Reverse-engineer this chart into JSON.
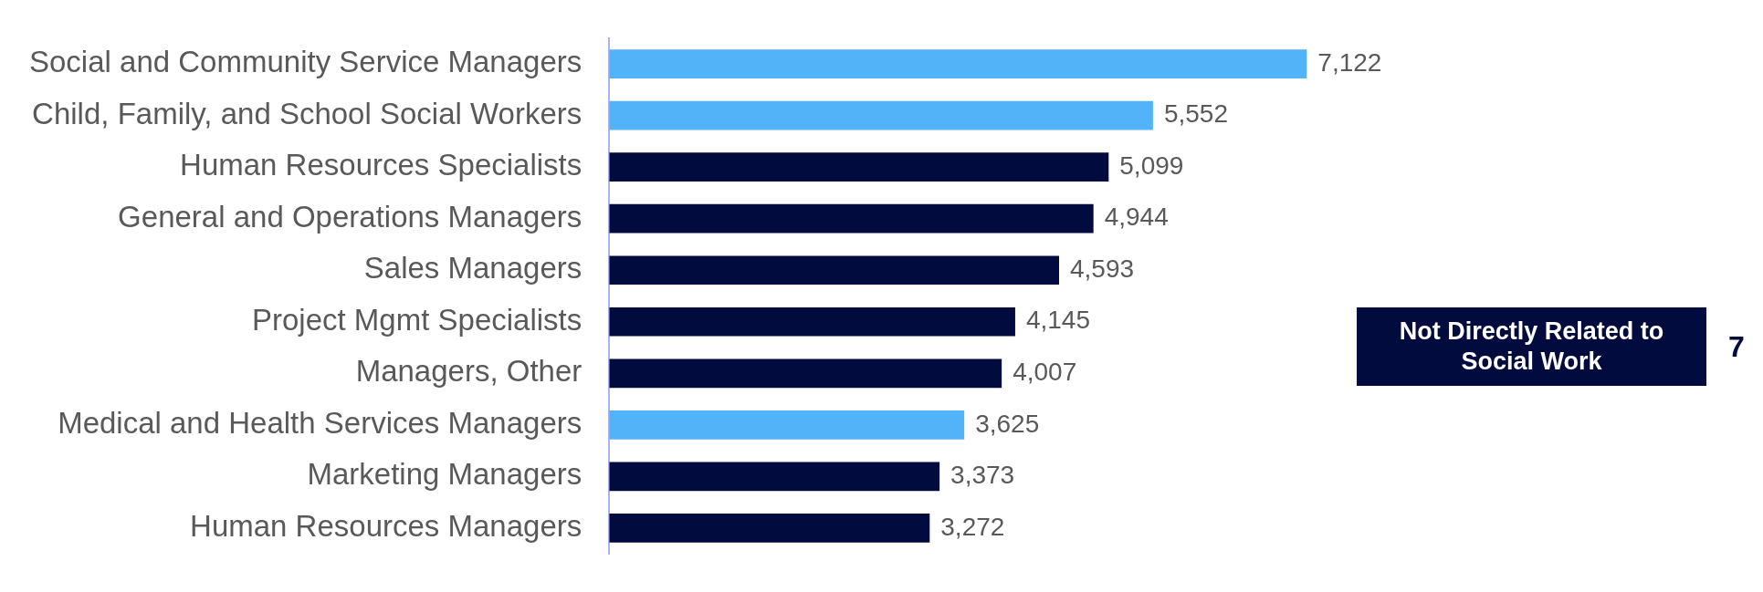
{
  "chart_data": {
    "type": "bar",
    "orientation": "horizontal",
    "stacked": true,
    "categories": [
      "Social and Community Service Managers",
      "Child, Family, and School Social Workers",
      "Human Resources Specialists",
      "General and Operations Managers",
      "Sales Managers",
      "Project Mgmt Specialists",
      "Managers, Other",
      "Medical and Health Services Managers",
      "Marketing Managers",
      "Human Resources Managers"
    ],
    "series": [
      {
        "color": "#53b3f8",
        "values": [
          7122,
          5552,
          null,
          null,
          null,
          null,
          null,
          3625,
          null,
          null
        ],
        "value_labels": [
          "7,122",
          "5,552",
          null,
          null,
          null,
          null,
          null,
          "3,625",
          null,
          null
        ]
      },
      {
        "name": "Not Directly Related to Social Work",
        "color": "#020b3e",
        "values": [
          null,
          null,
          5099,
          4944,
          4593,
          4145,
          4007,
          null,
          3373,
          3272
        ],
        "value_labels": [
          null,
          null,
          "5,099",
          "4,944",
          "4,593",
          "4,145",
          "4,007",
          null,
          "3,373",
          "3,272"
        ]
      }
    ],
    "tick_labels": "y",
    "legend": "right",
    "annotations": [
      "7"
    ]
  }
}
